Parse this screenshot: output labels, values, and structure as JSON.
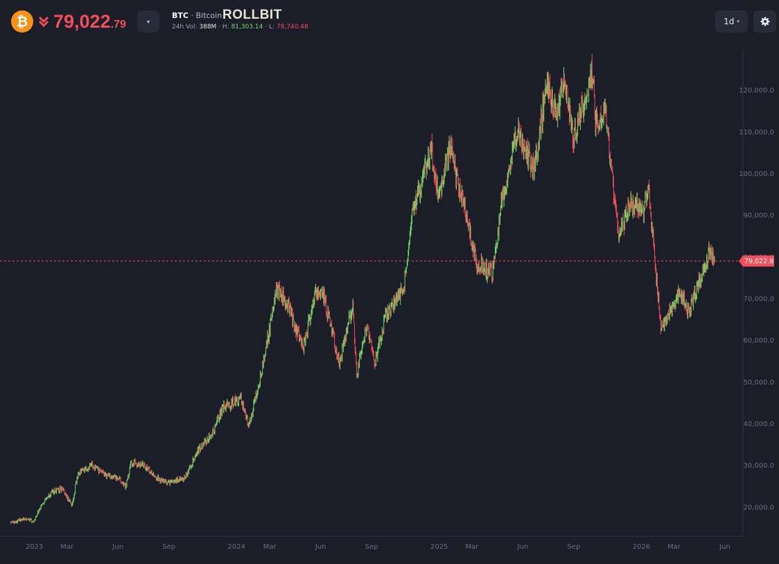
{
  "header": {
    "coin_icon_glyph": "₿",
    "coin_icon": "bitcoin-icon",
    "direction_icon": "double-chevron-down-icon",
    "price_main": "79,022",
    "price_decimals": ".79",
    "price_color": "#f24e5b",
    "dropdown_glyph": "▾",
    "symbol": "BTC",
    "separator": " · ",
    "name": "Bitcoin",
    "brand": "ROLLBIT",
    "vol_label": "24h Vol: ",
    "vol_value": "388M",
    "high_label": " · H: ",
    "high_value": "81,303.14",
    "low_label": " · L: ",
    "low_value": "78,740.48",
    "interval": "1d",
    "interval_caret": "▾",
    "settings_icon": "gear-icon"
  },
  "colors": {
    "background": "#1b1d29",
    "up": "#6fe065",
    "down": "#f24e5b",
    "brand_accent": "#f7931a"
  },
  "chart_data": {
    "type": "line",
    "style": "candlestick",
    "title": "",
    "interval": "1d",
    "y_axis_position": "right",
    "grid": false,
    "ylim": [
      13000,
      130000
    ],
    "xlim": [
      "2022-11-20",
      "2026-07-01"
    ],
    "y_ticks": [
      20000,
      30000,
      40000,
      50000,
      60000,
      70000,
      80000,
      90000,
      100000,
      110000,
      120000
    ],
    "y_tick_labels": [
      "20,000.0",
      "30,000.0",
      "40,000.0",
      "50,000.0",
      "60,000.0",
      "70,000.0",
      "80,000.0",
      "90,000.0",
      "100,000.0",
      "110,000.0",
      "120,000.0"
    ],
    "x_ticks": [
      {
        "date": "2023-01-01",
        "label": "2023"
      },
      {
        "date": "2023-03-01",
        "label": "Mar"
      },
      {
        "date": "2023-06-01",
        "label": "Jun"
      },
      {
        "date": "2023-09-01",
        "label": "Sep"
      },
      {
        "date": "2024-01-01",
        "label": "2024"
      },
      {
        "date": "2024-03-01",
        "label": "Mar"
      },
      {
        "date": "2024-06-01",
        "label": "Jun"
      },
      {
        "date": "2024-09-01",
        "label": "Sep"
      },
      {
        "date": "2025-01-01",
        "label": "2025"
      },
      {
        "date": "2025-03-01",
        "label": "Mar"
      },
      {
        "date": "2025-06-01",
        "label": "Jun"
      },
      {
        "date": "2025-09-01",
        "label": "Sep"
      },
      {
        "date": "2026-01-01",
        "label": "2026"
      },
      {
        "date": "2026-03-01",
        "label": "Mar"
      },
      {
        "date": "2026-06-01",
        "label": "Jun"
      }
    ],
    "current_price": 79022.8,
    "current_price_label": "79,022.8",
    "series": [
      {
        "points": [
          [
            "2022-11-20",
            16200
          ],
          [
            "2022-12-15",
            17300
          ],
          [
            "2022-12-31",
            16600
          ],
          [
            "2023-01-15",
            21000
          ],
          [
            "2023-02-01",
            23500
          ],
          [
            "2023-02-20",
            24500
          ],
          [
            "2023-03-10",
            20300
          ],
          [
            "2023-03-20",
            28000
          ],
          [
            "2023-04-15",
            30000
          ],
          [
            "2023-05-10",
            27500
          ],
          [
            "2023-06-01",
            27000
          ],
          [
            "2023-06-15",
            25000
          ],
          [
            "2023-06-25",
            30500
          ],
          [
            "2023-07-15",
            30300
          ],
          [
            "2023-08-17",
            26500
          ],
          [
            "2023-09-01",
            25900
          ],
          [
            "2023-09-30",
            27000
          ],
          [
            "2023-10-23",
            33500
          ],
          [
            "2023-11-15",
            37000
          ],
          [
            "2023-12-08",
            44000
          ],
          [
            "2024-01-10",
            46000
          ],
          [
            "2024-01-23",
            39500
          ],
          [
            "2024-02-15",
            52000
          ],
          [
            "2024-03-14",
            72500
          ],
          [
            "2024-04-01",
            69000
          ],
          [
            "2024-05-01",
            58000
          ],
          [
            "2024-05-21",
            71000
          ],
          [
            "2024-06-07",
            70500
          ],
          [
            "2024-07-05",
            54500
          ],
          [
            "2024-07-29",
            68500
          ],
          [
            "2024-08-05",
            51500
          ],
          [
            "2024-08-24",
            64000
          ],
          [
            "2024-09-06",
            54000
          ],
          [
            "2024-09-27",
            66000
          ],
          [
            "2024-10-29",
            72500
          ],
          [
            "2024-11-12",
            89000
          ],
          [
            "2024-12-17",
            106000
          ],
          [
            "2024-12-31",
            93500
          ],
          [
            "2025-01-20",
            107000
          ],
          [
            "2025-02-03",
            98000
          ],
          [
            "2025-02-25",
            86000
          ],
          [
            "2025-03-10",
            78500
          ],
          [
            "2025-04-07",
            76000
          ],
          [
            "2025-04-25",
            94000
          ],
          [
            "2025-05-22",
            110500
          ],
          [
            "2025-06-22",
            100500
          ],
          [
            "2025-07-14",
            122000
          ],
          [
            "2025-08-02",
            113500
          ],
          [
            "2025-08-14",
            123500
          ],
          [
            "2025-09-01",
            108500
          ],
          [
            "2025-10-06",
            125000
          ],
          [
            "2025-10-10",
            112000
          ],
          [
            "2025-10-27",
            115500
          ],
          [
            "2025-11-21",
            84000
          ],
          [
            "2025-12-10",
            92500
          ],
          [
            "2026-01-05",
            91500
          ],
          [
            "2026-01-14",
            96500
          ],
          [
            "2026-02-06",
            62000
          ],
          [
            "2026-02-20",
            67000
          ],
          [
            "2026-03-15",
            71500
          ],
          [
            "2026-03-28",
            66500
          ],
          [
            "2026-04-20",
            76000
          ],
          [
            "2026-05-05",
            82000
          ],
          [
            "2026-05-13",
            79022.8
          ]
        ]
      }
    ]
  }
}
